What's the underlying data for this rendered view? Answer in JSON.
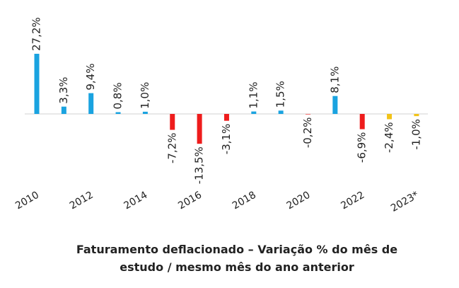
{
  "chart_data": {
    "type": "bar",
    "title": [
      "Faturamento deflacionado – Variação % do mês de",
      "estudo / mesmo mês do ano anterior"
    ],
    "categories": [
      "2010",
      null,
      "2012",
      null,
      "2014",
      null,
      "2016",
      null,
      "2018",
      null,
      "2020",
      null,
      "2022",
      null,
      "2023*"
    ],
    "values": [
      27.2,
      3.3,
      9.4,
      0.8,
      1.0,
      -7.2,
      -13.5,
      -3.1,
      1.1,
      1.5,
      -0.2,
      8.1,
      -6.9,
      -2.4,
      -1.0
    ],
    "value_labels": [
      "27,2%",
      "3,3%",
      "9,4%",
      "0,8%",
      "1,0%",
      "-7,2%",
      "-13,5%",
      "-3,1%",
      "1,1%",
      "1,5%",
      "-0,2%",
      "8,1%",
      "-6,9%",
      "-2,4%",
      "-1,0%"
    ],
    "colors": [
      "#1aa3e0",
      "#1aa3e0",
      "#1aa3e0",
      "#1aa3e0",
      "#1aa3e0",
      "#ee1c1c",
      "#ee1c1c",
      "#ee1c1c",
      "#1aa3e0",
      "#1aa3e0",
      "#ee1c1c",
      "#1aa3e0",
      "#ee1c1c",
      "#f2c318",
      "#f2c318"
    ]
  }
}
